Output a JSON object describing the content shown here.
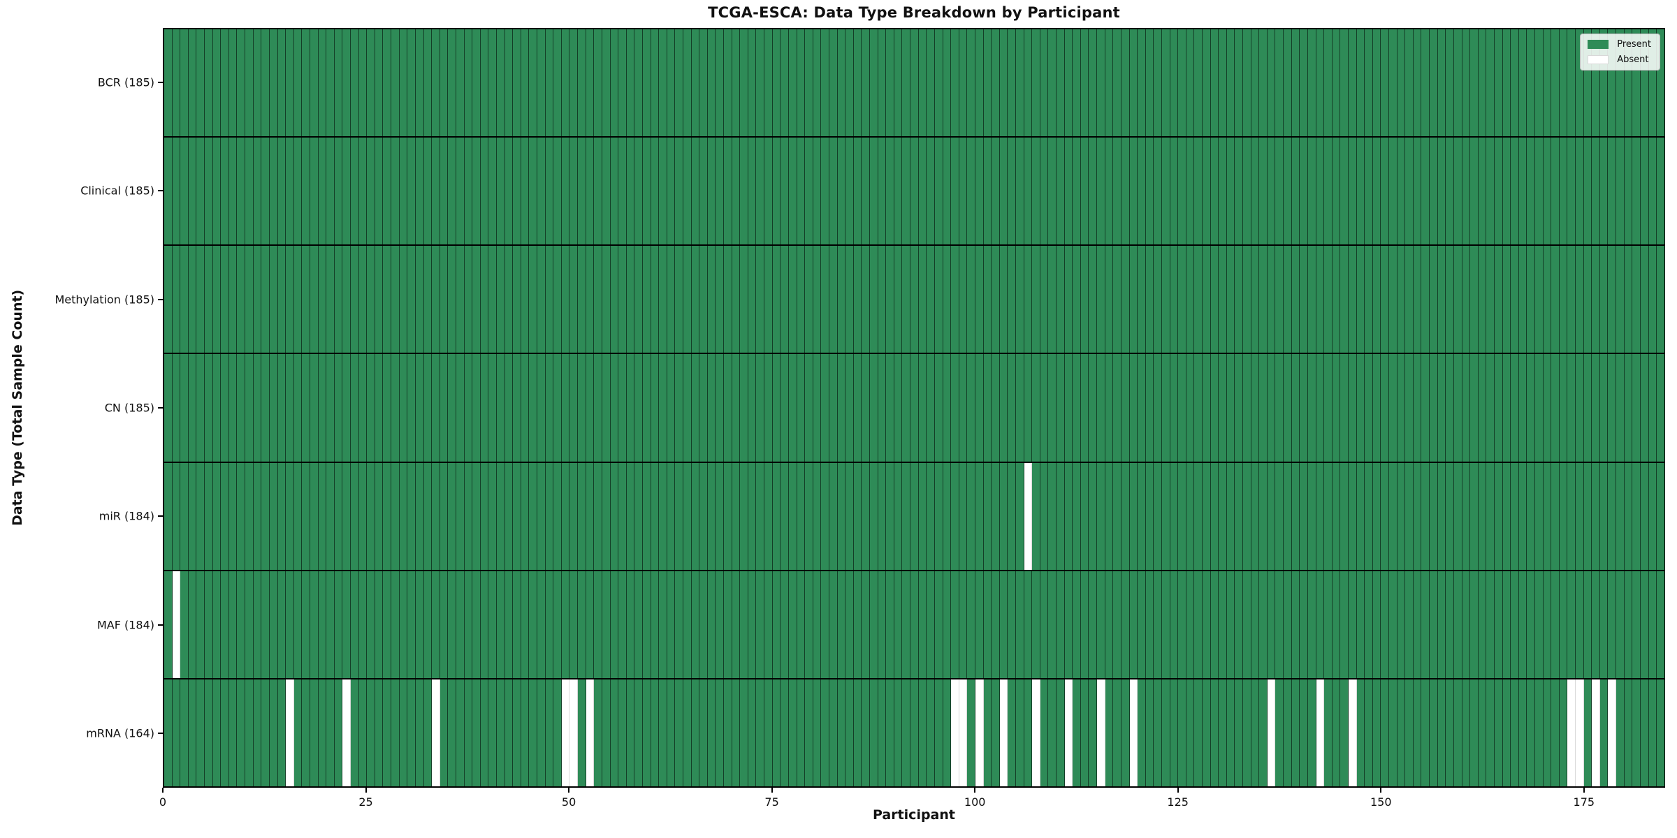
{
  "chart_data": {
    "type": "heatmap",
    "title": "TCGA-ESCA: Data Type Breakdown by Participant",
    "xlabel": "Participant",
    "ylabel": "Data Type (Total Sample Count)",
    "n_participants": 185,
    "x_range": [
      0,
      185
    ],
    "x_ticks": [
      0,
      25,
      50,
      75,
      100,
      125,
      150,
      175
    ],
    "grid": false,
    "legend_position": "upper right",
    "legend": [
      {
        "label": "Present",
        "color": "#2e8b57"
      },
      {
        "label": "Absent",
        "color": "#ffffff"
      }
    ],
    "colors": {
      "present": "#2e8b57",
      "absent": "#ffffff",
      "cell_edge": "rgba(0,0,0,0.55)",
      "row_separator": "#000000"
    },
    "rows": [
      {
        "label": "BCR (185)",
        "name": "BCR",
        "total_samples": 185,
        "absent_participants": []
      },
      {
        "label": "Clinical (185)",
        "name": "Clinical",
        "total_samples": 185,
        "absent_participants": []
      },
      {
        "label": "Methylation (185)",
        "name": "Methylation",
        "total_samples": 185,
        "absent_participants": []
      },
      {
        "label": "CN (185)",
        "name": "CN",
        "total_samples": 185,
        "absent_participants": []
      },
      {
        "label": "miR (184)",
        "name": "miR",
        "total_samples": 184,
        "absent_participants": [
          106
        ]
      },
      {
        "label": "MAF (184)",
        "name": "MAF",
        "total_samples": 184,
        "absent_participants": [
          1
        ]
      },
      {
        "label": "mRNA (164)",
        "name": "mRNA",
        "total_samples": 164,
        "absent_participants": [
          15,
          22,
          33,
          49,
          50,
          52,
          97,
          98,
          100,
          103,
          107,
          111,
          115,
          119,
          136,
          142,
          146,
          173,
          174,
          176,
          178
        ]
      }
    ]
  }
}
